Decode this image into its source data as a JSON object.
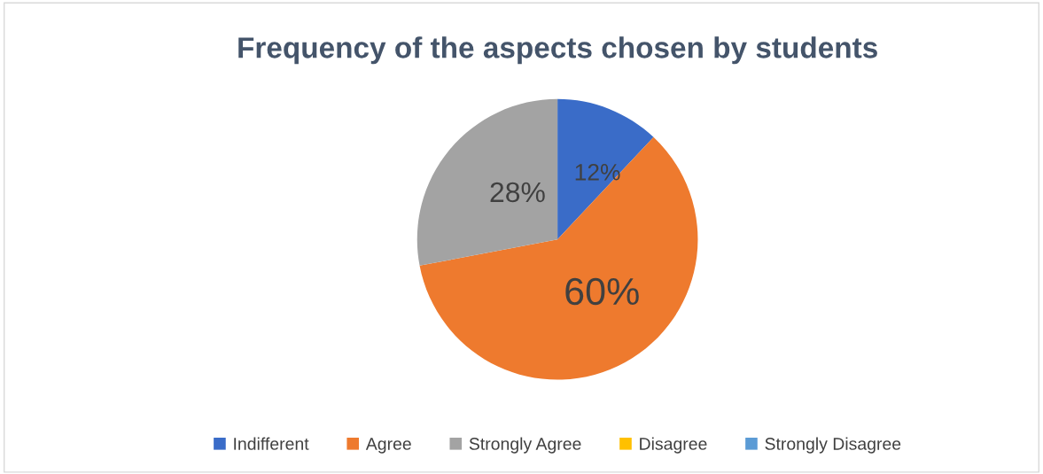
{
  "chart_data": {
    "type": "pie",
    "title": "Frequency of the aspects chosen by students",
    "categories": [
      "Indifferent",
      "Agree",
      "Strongly Agree",
      "Disagree",
      "Strongly Disagree"
    ],
    "values": [
      12,
      60,
      28,
      0,
      0
    ],
    "colors": [
      "#3a6cc8",
      "#ee7a2e",
      "#a3a3a3",
      "#ffc000",
      "#5b9bd5"
    ],
    "value_labels": [
      "12%",
      "60%",
      "28%",
      null,
      null
    ],
    "legend": "bottom"
  }
}
